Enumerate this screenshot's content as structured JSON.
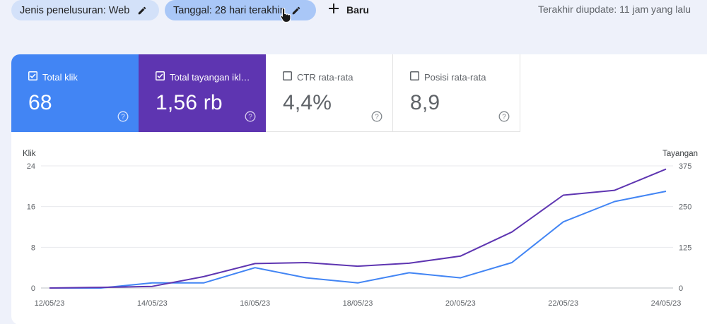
{
  "filters": {
    "search_type_label": "Jenis penelusuran: Web",
    "date_label": "Tanggal: 28 hari terakhir",
    "new_label": "Baru"
  },
  "updated_text": "Terakhir diupdate: 11 jam yang lalu",
  "metrics": [
    {
      "label": "Total klik",
      "value": "68",
      "checked": true,
      "color": "#4285f4"
    },
    {
      "label": "Total tayangan ikl…",
      "value": "1,56 rb",
      "checked": true,
      "color": "#5e35b1"
    },
    {
      "label": "CTR rata-rata",
      "value": "4,4%",
      "checked": false
    },
    {
      "label": "Posisi rata-rata",
      "value": "8,9",
      "checked": false
    }
  ],
  "chart_data": {
    "type": "line",
    "left_axis_title": "Klik",
    "right_axis_title": "Tayangan",
    "left_ticks": [
      "0",
      "8",
      "16",
      "24"
    ],
    "right_ticks": [
      "0",
      "125",
      "250",
      "375"
    ],
    "left_ylim": [
      0,
      24
    ],
    "right_ylim": [
      0,
      375
    ],
    "x_tick_labels": [
      "12/05/23",
      "14/05/23",
      "16/05/23",
      "18/05/23",
      "20/05/23",
      "22/05/23",
      "24/05/23"
    ],
    "x": [
      "12/05/23",
      "13/05/23",
      "14/05/23",
      "15/05/23",
      "16/05/23",
      "17/05/23",
      "18/05/23",
      "19/05/23",
      "20/05/23",
      "21/05/23",
      "22/05/23",
      "23/05/23",
      "24/05/23"
    ],
    "series": [
      {
        "name": "Total klik",
        "axis": "left",
        "color": "#4285f4",
        "values": [
          0,
          0,
          1,
          1,
          4,
          2,
          1,
          3,
          2,
          5,
          13,
          17,
          19
        ]
      },
      {
        "name": "Total tayangan ikl…",
        "axis": "right",
        "color": "#5e35b1",
        "values": [
          0,
          2,
          5,
          35,
          75,
          78,
          67,
          76,
          98,
          172,
          285,
          300,
          365
        ]
      }
    ],
    "grid": true
  }
}
